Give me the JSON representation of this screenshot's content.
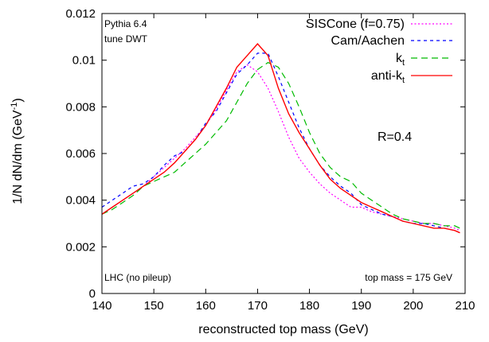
{
  "chart_data": {
    "type": "line",
    "xlabel": "reconstructed top mass (GeV)",
    "ylabel": "1/N dN/dm (GeV",
    "ylabel_sup": "-1",
    "ylabel_close": ")",
    "xlim": [
      140,
      210
    ],
    "ylim": [
      0,
      0.012
    ],
    "x_ticks": [
      140,
      150,
      160,
      170,
      180,
      190,
      200,
      210
    ],
    "x_tick_labels": [
      "140",
      "150",
      "160",
      "170",
      "180",
      "190",
      "200",
      "210"
    ],
    "y_ticks": [
      0,
      0.002,
      0.004,
      0.006,
      0.008,
      0.01,
      0.012
    ],
    "y_tick_labels": [
      "0",
      "0.002",
      "0.004",
      "0.006",
      "0.008",
      "0.01",
      "0.012"
    ],
    "grid": false,
    "legend_position": "top-right",
    "annotations": {
      "top_left_line1": "Pythia 6.4",
      "top_left_line2": "tune DWT",
      "radius": "R=0.4",
      "bottom_left": "LHC (no pileup)",
      "bottom_right": "top mass = 175 GeV"
    },
    "series": [
      {
        "name": "SISCone (f=0.75)",
        "color": "#ff00ff",
        "dash": "2,2.5",
        "x": [
          140,
          142,
          144,
          146,
          148,
          150,
          152,
          154,
          156,
          158,
          160,
          162,
          164,
          166,
          168,
          170,
          172,
          174,
          176,
          178,
          180,
          182,
          184,
          186,
          188,
          190,
          192,
          194,
          196,
          198,
          200,
          202,
          204,
          206,
          208,
          209
        ],
        "y": [
          0.0034,
          0.0037,
          0.004,
          0.0043,
          0.0046,
          0.005,
          0.0054,
          0.0058,
          0.0062,
          0.0067,
          0.0072,
          0.0079,
          0.0087,
          0.0095,
          0.0098,
          0.0095,
          0.0088,
          0.0078,
          0.0067,
          0.0058,
          0.0052,
          0.0047,
          0.0043,
          0.004,
          0.0037,
          0.0037,
          0.0035,
          0.0034,
          0.0033,
          0.0032,
          0.0031,
          0.003,
          0.003,
          0.0029,
          0.0028,
          0.0027
        ]
      },
      {
        "name": "Cam/Aachen",
        "name_sub": "",
        "color": "#0000ff",
        "dash": "4,4",
        "x": [
          140,
          142,
          144,
          146,
          148,
          150,
          152,
          154,
          156,
          158,
          160,
          162,
          164,
          166,
          168,
          170,
          172,
          174,
          176,
          178,
          180,
          182,
          184,
          186,
          188,
          190,
          192,
          194,
          196,
          198,
          200,
          202,
          204,
          206,
          208,
          209
        ],
        "y": [
          0.0037,
          0.004,
          0.0043,
          0.0046,
          0.0047,
          0.005,
          0.0055,
          0.0059,
          0.0061,
          0.0066,
          0.0073,
          0.0078,
          0.0086,
          0.0094,
          0.0098,
          0.0103,
          0.0103,
          0.0093,
          0.0082,
          0.0071,
          0.0062,
          0.0055,
          0.005,
          0.0046,
          0.0043,
          0.0038,
          0.0036,
          0.0034,
          0.0033,
          0.0031,
          0.003,
          0.003,
          0.0029,
          0.0028,
          0.0027,
          0.0026
        ]
      },
      {
        "name": "k",
        "name_sub": "t",
        "color": "#00bb00",
        "dash": "8,5",
        "x": [
          140,
          142,
          144,
          146,
          148,
          150,
          152,
          154,
          156,
          158,
          160,
          162,
          164,
          166,
          168,
          170,
          172,
          174,
          176,
          178,
          180,
          182,
          184,
          186,
          188,
          190,
          192,
          194,
          196,
          198,
          200,
          202,
          204,
          206,
          208,
          209
        ],
        "y": [
          0.0034,
          0.0036,
          0.0039,
          0.0042,
          0.0046,
          0.0048,
          0.005,
          0.0052,
          0.0056,
          0.006,
          0.0064,
          0.0069,
          0.0074,
          0.0082,
          0.009,
          0.0096,
          0.0099,
          0.0097,
          0.009,
          0.008,
          0.0069,
          0.006,
          0.0054,
          0.005,
          0.0048,
          0.0043,
          0.004,
          0.0037,
          0.0034,
          0.0032,
          0.0031,
          0.003,
          0.003,
          0.0029,
          0.0029,
          0.0028
        ]
      },
      {
        "name": "anti-k",
        "name_sub": "t",
        "color": "#ff0000",
        "dash": "",
        "x": [
          140,
          142,
          144,
          146,
          148,
          150,
          152,
          154,
          156,
          158,
          160,
          162,
          164,
          166,
          168,
          170,
          172,
          174,
          176,
          178,
          180,
          182,
          184,
          186,
          188,
          190,
          192,
          194,
          196,
          198,
          200,
          202,
          204,
          206,
          208,
          209
        ],
        "y": [
          0.0034,
          0.0037,
          0.004,
          0.0043,
          0.0046,
          0.0049,
          0.0052,
          0.0056,
          0.0061,
          0.0066,
          0.0072,
          0.008,
          0.0088,
          0.0097,
          0.0102,
          0.0107,
          0.0102,
          0.0088,
          0.0077,
          0.0069,
          0.0062,
          0.0055,
          0.0049,
          0.0045,
          0.0042,
          0.0039,
          0.0037,
          0.0035,
          0.0033,
          0.0031,
          0.003,
          0.0029,
          0.0028,
          0.0028,
          0.0027,
          0.0026
        ]
      }
    ]
  }
}
